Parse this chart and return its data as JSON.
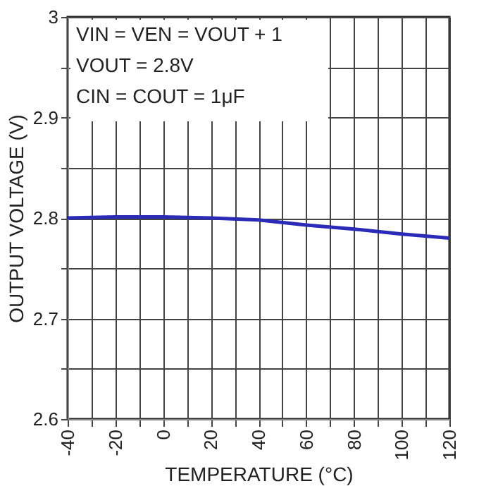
{
  "chart_data": {
    "type": "line",
    "xlabel": "TEMPERATURE (°C)",
    "ylabel": "OUTPUT VOLTAGE (V)",
    "x": [
      -40,
      -20,
      0,
      20,
      40,
      60,
      80,
      100,
      120
    ],
    "series": [
      {
        "color": "#2b2bb8",
        "values": [
          2.8,
          2.801,
          2.801,
          2.8,
          2.798,
          2.793,
          2.789,
          2.784,
          2.78
        ]
      }
    ],
    "xlim": [
      -40,
      120
    ],
    "ylim": [
      2.6,
      3.0
    ],
    "xticks": [
      -40,
      {
        "value": -30,
        "label": null
      },
      -20,
      {
        "value": -10,
        "label": null
      },
      0,
      {
        "value": 10,
        "label": null
      },
      20,
      {
        "value": 30,
        "label": null
      },
      40,
      {
        "value": 50,
        "label": null
      },
      60,
      {
        "value": 70,
        "label": null
      },
      80,
      {
        "value": 90,
        "label": null
      },
      100,
      {
        "value": 110,
        "label": null
      },
      120
    ],
    "yticks": [
      2.6,
      {
        "value": 2.65,
        "label": null
      },
      2.7,
      {
        "value": 2.75,
        "label": null
      },
      2.8,
      {
        "value": 2.85,
        "label": null
      },
      2.9,
      {
        "value": 2.95,
        "label": null
      },
      3
    ],
    "grid": true,
    "marker": "none",
    "line_style": "solid",
    "annotations": [
      "VIN = VEN = VOUT + 1",
      "VOUT = 2.8V",
      "CIN = COUT = 1μF"
    ]
  }
}
